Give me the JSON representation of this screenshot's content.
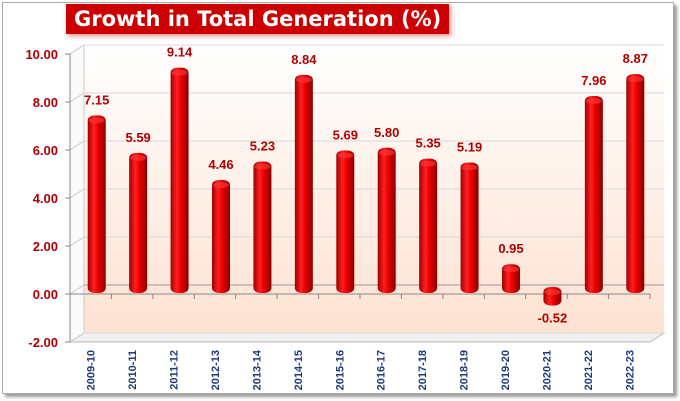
{
  "chart_data": {
    "type": "bar",
    "title": "Growth in Total Generation (%)",
    "categories": [
      "2009-10",
      "2010-11",
      "2011-12",
      "2012-13",
      "2013-14",
      "2014-15",
      "2015-16",
      "2016-17",
      "2017-18",
      "2018-19",
      "2019-20",
      "2020-21",
      "2021-22",
      "2022-23"
    ],
    "values": [
      7.15,
      5.59,
      9.14,
      4.46,
      5.23,
      8.84,
      5.69,
      5.8,
      5.35,
      5.19,
      0.95,
      -0.52,
      7.96,
      8.87
    ],
    "data_labels": [
      "7.15",
      "5.59",
      "9.14",
      "4.46",
      "5.23",
      "8.84",
      "5.69",
      "5.80",
      "5.35",
      "5.19",
      "0.95",
      "-0.52",
      "7.96",
      "8.87"
    ],
    "ylim": [
      -2,
      10
    ],
    "yticks": [
      "-2.00",
      "0.00",
      "2.00",
      "4.00",
      "6.00",
      "8.00",
      "10.00"
    ],
    "grid": true,
    "xlabel": "",
    "ylabel": "",
    "colors": {
      "bar": "#e00000",
      "title_bg": "#cc0000",
      "label": "#b00000",
      "category": "#1f3a7a",
      "floor": "#fde5d8"
    }
  }
}
